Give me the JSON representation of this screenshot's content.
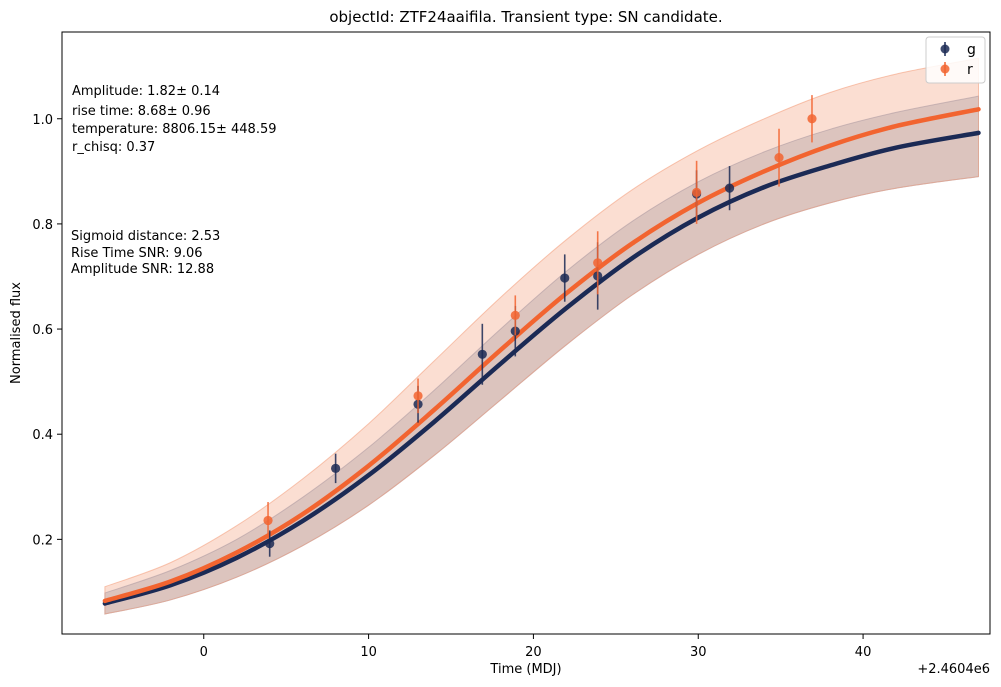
{
  "chart_data": {
    "type": "line",
    "title": "objectId: ZTF24aaifila. Transient type: SN candidate.",
    "xlabel": "Time (MDJ)",
    "ylabel": "Normalised flux",
    "x_offset_label": "+2.4604e6",
    "xlim": [
      -8.6,
      47.7
    ],
    "ylim": [
      0.02,
      1.165
    ],
    "xticks": [
      0,
      10,
      20,
      30,
      40
    ],
    "yticks": [
      0.2,
      0.4,
      0.6,
      0.8,
      1.0
    ],
    "xtick_labels": [
      "0",
      "10",
      "20",
      "30",
      "40"
    ],
    "ytick_labels": [
      "0.2",
      "0.4",
      "0.6",
      "0.8",
      "1.0"
    ],
    "grid": false,
    "legend_position": "top-right",
    "annotations": {
      "fit_params": [
        "Amplitude: 1.82± 0.14",
        "rise time: 8.68± 0.96",
        "temperature: 8806.15± 448.59",
        "r_chisq: 0.37"
      ],
      "metrics": [
        "Sigmoid distance: 2.53",
        "Rise Time SNR: 9.06",
        "Amplitude SNR: 12.88"
      ]
    },
    "series": [
      {
        "name": "g",
        "color": "#1b2a55",
        "band_color": "#8a9ab5",
        "points": [
          {
            "x": 4.0,
            "y": 0.192,
            "err": 0.025
          },
          {
            "x": 8.0,
            "y": 0.335,
            "err": 0.028
          },
          {
            "x": 13.0,
            "y": 0.457,
            "err": 0.035
          },
          {
            "x": 16.9,
            "y": 0.552,
            "err": 0.058
          },
          {
            "x": 18.9,
            "y": 0.596,
            "err": 0.048
          },
          {
            "x": 21.9,
            "y": 0.697,
            "err": 0.045
          },
          {
            "x": 23.9,
            "y": 0.701,
            "err": 0.064
          },
          {
            "x": 29.9,
            "y": 0.857,
            "err": 0.045
          },
          {
            "x": 31.9,
            "y": 0.868,
            "err": 0.042
          }
        ],
        "fit": [
          {
            "x": -6,
            "y": 0.078,
            "lo": 0.058,
            "hi": 0.098
          },
          {
            "x": -2,
            "y": 0.113,
            "lo": 0.085,
            "hi": 0.141
          },
          {
            "x": 2,
            "y": 0.165,
            "lo": 0.128,
            "hi": 0.2
          },
          {
            "x": 6,
            "y": 0.235,
            "lo": 0.188,
            "hi": 0.28
          },
          {
            "x": 10,
            "y": 0.322,
            "lo": 0.265,
            "hi": 0.375
          },
          {
            "x": 14,
            "y": 0.424,
            "lo": 0.36,
            "hi": 0.484
          },
          {
            "x": 18,
            "y": 0.534,
            "lo": 0.465,
            "hi": 0.6
          },
          {
            "x": 22,
            "y": 0.64,
            "lo": 0.57,
            "hi": 0.71
          },
          {
            "x": 26,
            "y": 0.735,
            "lo": 0.665,
            "hi": 0.805
          },
          {
            "x": 30,
            "y": 0.812,
            "lo": 0.742,
            "hi": 0.88
          },
          {
            "x": 34,
            "y": 0.87,
            "lo": 0.8,
            "hi": 0.937
          },
          {
            "x": 38,
            "y": 0.911,
            "lo": 0.84,
            "hi": 0.98
          },
          {
            "x": 42,
            "y": 0.945,
            "lo": 0.868,
            "hi": 1.012
          },
          {
            "x": 47,
            "y": 0.973,
            "lo": 0.89,
            "hi": 1.043
          }
        ]
      },
      {
        "name": "r",
        "color": "#f26430",
        "band_color": "#f4a07f",
        "points": [
          {
            "x": 3.9,
            "y": 0.236,
            "err": 0.035
          },
          {
            "x": 13.0,
            "y": 0.473,
            "err": 0.033
          },
          {
            "x": 18.9,
            "y": 0.626,
            "err": 0.038
          },
          {
            "x": 23.9,
            "y": 0.726,
            "err": 0.06
          },
          {
            "x": 29.9,
            "y": 0.86,
            "err": 0.06
          },
          {
            "x": 34.9,
            "y": 0.926,
            "err": 0.055
          },
          {
            "x": 36.9,
            "y": 1.0,
            "err": 0.045
          }
        ],
        "fit": [
          {
            "x": -6,
            "y": 0.083,
            "lo": 0.058,
            "hi": 0.11
          },
          {
            "x": -2,
            "y": 0.12,
            "lo": 0.085,
            "hi": 0.156
          },
          {
            "x": 2,
            "y": 0.175,
            "lo": 0.128,
            "hi": 0.226
          },
          {
            "x": 6,
            "y": 0.248,
            "lo": 0.188,
            "hi": 0.315
          },
          {
            "x": 10,
            "y": 0.34,
            "lo": 0.265,
            "hi": 0.42
          },
          {
            "x": 14,
            "y": 0.447,
            "lo": 0.36,
            "hi": 0.54
          },
          {
            "x": 18,
            "y": 0.56,
            "lo": 0.465,
            "hi": 0.66
          },
          {
            "x": 22,
            "y": 0.668,
            "lo": 0.57,
            "hi": 0.77
          },
          {
            "x": 26,
            "y": 0.763,
            "lo": 0.665,
            "hi": 0.865
          },
          {
            "x": 30,
            "y": 0.84,
            "lo": 0.742,
            "hi": 0.94
          },
          {
            "x": 34,
            "y": 0.9,
            "lo": 0.8,
            "hi": 1.0
          },
          {
            "x": 38,
            "y": 0.949,
            "lo": 0.84,
            "hi": 1.05
          },
          {
            "x": 42,
            "y": 0.986,
            "lo": 0.868,
            "hi": 1.085
          },
          {
            "x": 47,
            "y": 1.018,
            "lo": 0.89,
            "hi": 1.115
          }
        ]
      }
    ]
  }
}
